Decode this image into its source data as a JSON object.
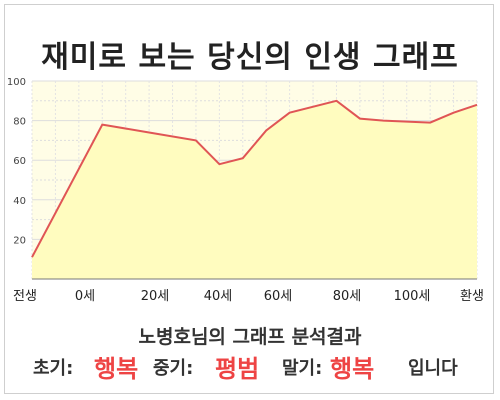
{
  "title": "재미로 보는 당신의 인생 그래프",
  "subtitle": "노병호님의 그래프 분석결과",
  "result": {
    "early_label": "초기:",
    "early_value": "행복",
    "middle_label": "중기:",
    "middle_value": "평범",
    "late_label": "말기:",
    "late_value": "행복",
    "suffix": "입니다"
  },
  "colors": {
    "line": "#e05555",
    "fill": "#fffcbf",
    "result_value": "#ee4444"
  },
  "chart_data": {
    "type": "area",
    "x_tick_labels": [
      "전생",
      "0세",
      "20세",
      "40세",
      "60세",
      "80세",
      "100세",
      "환생"
    ],
    "y_ticks": [
      "20",
      "40",
      "60",
      "80",
      "100"
    ],
    "ylim": [
      0,
      100
    ],
    "grid": true,
    "x": [
      -15,
      0,
      10,
      20,
      25,
      30,
      35,
      40,
      50,
      55,
      60,
      70,
      75,
      80
    ],
    "y": [
      11,
      78,
      74,
      70,
      58,
      61,
      75,
      84,
      90,
      81,
      80,
      79,
      84,
      88
    ]
  }
}
